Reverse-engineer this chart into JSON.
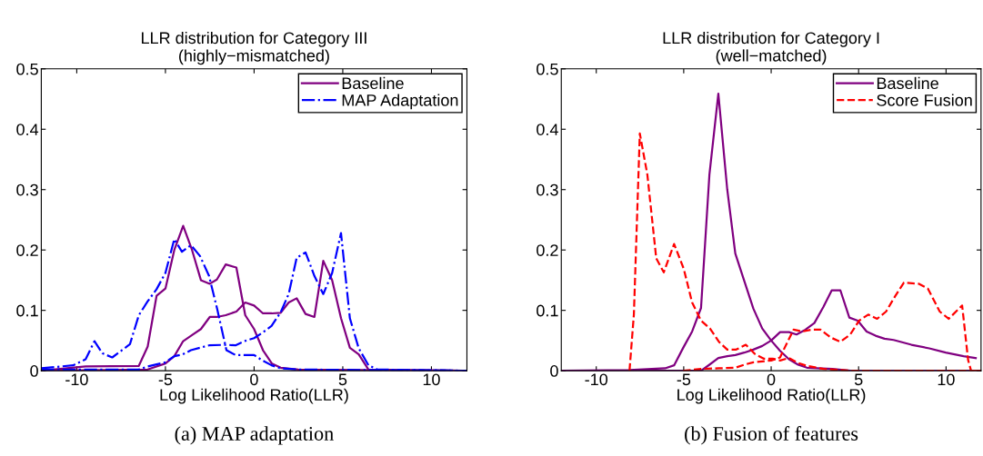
{
  "chart_data": [
    {
      "type": "line",
      "title": "LLR distribution for Category III\n(highly−mismatched)",
      "xlabel": "Log Likelihood Ratio(LLR)",
      "annotations": [
        "(a) MAP adaptation"
      ],
      "xlim": [
        -12,
        12
      ],
      "ylim": [
        0,
        0.5
      ],
      "xticks": [
        -10,
        -5,
        0,
        5,
        10
      ],
      "yticks": [
        0,
        0.1,
        0.2,
        0.3,
        0.4,
        0.5
      ],
      "grid": false,
      "legend": "top right",
      "marker": "none",
      "series": [
        {
          "name": "Baseline",
          "color": "#800080",
          "line_style": "solid",
          "x": [
            -12,
            -9.5,
            -6.5,
            -6.0,
            -5.5,
            -5.0,
            -4.5,
            -4.0,
            -3.5,
            -3.0,
            -2.5,
            -2.1,
            -1.6,
            -1.0,
            -0.5,
            0,
            0.5,
            1.0,
            1.5,
            2.5,
            12
          ],
          "values": [
            0,
            0.007,
            0.008,
            0.04,
            0.124,
            0.136,
            0.2,
            0.24,
            0.2,
            0.15,
            0.144,
            0.151,
            0.176,
            0.171,
            0.092,
            0.069,
            0.034,
            0.012,
            0.005,
            0.002,
            0
          ]
        },
        {
          "color": "#800080",
          "line_style": "solid",
          "x": [
            -12,
            -6,
            -5,
            -4.5,
            -4.0,
            -3.5,
            -3.0,
            -2.5,
            -2.1,
            -1.6,
            -1.0,
            -0.5,
            0,
            0.5,
            1.0,
            1.5,
            1.95,
            2.4,
            2.9,
            3.4,
            3.9,
            4.4,
            4.9,
            5.4,
            5.9,
            6.45,
            12
          ],
          "values": [
            0,
            0.002,
            0.012,
            0.024,
            0.049,
            0.059,
            0.069,
            0.089,
            0.089,
            0.092,
            0.098,
            0.113,
            0.108,
            0.095,
            0.095,
            0.096,
            0.113,
            0.12,
            0.094,
            0.089,
            0.182,
            0.15,
            0.087,
            0.038,
            0.027,
            0.002,
            0
          ]
        },
        {
          "name": "MAP Adaptation",
          "color": "#0000ff",
          "line_style": "dashdot",
          "x": [
            -12,
            -10.2,
            -9.5,
            -9.0,
            -8.56,
            -8.0,
            -7.54,
            -7.0,
            -6.5,
            -6.0,
            -5.5,
            -5.0,
            -4.5,
            -4.07,
            -3.56,
            -3.05,
            -2.54,
            -2.08,
            -1.56,
            -1.05,
            -0.54,
            0,
            0.47,
            0.98,
            1.5,
            2.5,
            12
          ],
          "values": [
            0.004,
            0.009,
            0.019,
            0.049,
            0.029,
            0.022,
            0.032,
            0.044,
            0.092,
            0.115,
            0.135,
            0.162,
            0.218,
            0.197,
            0.208,
            0.19,
            0.157,
            0.102,
            0.034,
            0.026,
            0.026,
            0.026,
            0.017,
            0.009,
            0.004,
            0.002,
            0
          ]
        },
        {
          "color": "#0000ff",
          "line_style": "dashdot",
          "x": [
            -12,
            -6.5,
            -6.0,
            -5.0,
            -4.5,
            -4.03,
            -3.56,
            -2.54,
            -1.56,
            -1.05,
            -0.54,
            0,
            0.47,
            0.98,
            1.5,
            1.95,
            2.4,
            2.9,
            3.4,
            3.9,
            4.4,
            4.9,
            5.4,
            5.9,
            6.45,
            6.95,
            12
          ],
          "values": [
            0.002,
            0.002,
            0.007,
            0.014,
            0.024,
            0.027,
            0.034,
            0.042,
            0.043,
            0.042,
            0.049,
            0.054,
            0.063,
            0.074,
            0.097,
            0.127,
            0.187,
            0.196,
            0.157,
            0.127,
            0.162,
            0.228,
            0.087,
            0.037,
            0.009,
            0.002,
            0
          ]
        }
      ]
    },
    {
      "type": "line",
      "title": "LLR distribution for Category I\n(well−matched)",
      "xlabel": "Log Likelihood Ratio(LLR)",
      "annotations": [
        "(b) Fusion of features"
      ],
      "xlim": [
        -12,
        12
      ],
      "ylim": [
        0,
        0.5
      ],
      "xticks": [
        -10,
        -5,
        0,
        5,
        10
      ],
      "yticks": [
        0,
        0.1,
        0.2,
        0.3,
        0.4,
        0.5
      ],
      "grid": false,
      "legend": "top right",
      "marker": "none",
      "series": [
        {
          "name": "Baseline",
          "color": "#800080",
          "line_style": "solid",
          "x": [
            -12,
            -8.1,
            -6.06,
            -5.55,
            -5.03,
            -4.52,
            -4.01,
            -3.53,
            -3.02,
            -2.51,
            -2.05,
            -1.54,
            -1.02,
            -0.51,
            0,
            0.51,
            1.02,
            1.54,
            2.05,
            3.5,
            4.52,
            12
          ],
          "values": [
            0,
            0.001,
            0.004,
            0.009,
            0.038,
            0.065,
            0.104,
            0.325,
            0.459,
            0.3,
            0.194,
            0.149,
            0.103,
            0.07,
            0.05,
            0.033,
            0.019,
            0.01,
            0.005,
            0.003,
            0,
            0
          ]
        },
        {
          "color": "#800080",
          "line_style": "solid",
          "x": [
            -12,
            -4.01,
            -3.53,
            -3.02,
            -2.51,
            -2.05,
            -1.54,
            -1.02,
            -0.51,
            0,
            0.51,
            1.02,
            1.45,
            1.96,
            2.47,
            2.99,
            3.46,
            3.96,
            4.47,
            4.95,
            5.46,
            5.97,
            6.48,
            7.0,
            8.02,
            9.04,
            9.98,
            11.0,
            11.7
          ],
          "values": [
            0,
            0,
            0.01,
            0.021,
            0.024,
            0.026,
            0.03,
            0.035,
            0.041,
            0.05,
            0.064,
            0.064,
            0.06,
            0.068,
            0.079,
            0.106,
            0.133,
            0.133,
            0.088,
            0.083,
            0.065,
            0.058,
            0.053,
            0.051,
            0.043,
            0.037,
            0.03,
            0.024,
            0.021
          ]
        },
        {
          "name": "Score Fusion",
          "color": "#ff0000",
          "line_style": "dashed",
          "x": [
            -8.1,
            -7.85,
            -7.51,
            -7.08,
            -6.57,
            -6.14,
            -5.55,
            -5.0,
            -4.52,
            -4.01,
            -3.5,
            -2.99,
            -2.51,
            -2.0,
            -1.45,
            -0.94,
            -0.43,
            0.09,
            0.51,
            1.02,
            1.54,
            2.05,
            2.99,
            4.52,
            12
          ],
          "values": [
            0,
            0.093,
            0.393,
            0.325,
            0.186,
            0.163,
            0.21,
            0.169,
            0.113,
            0.083,
            0.07,
            0.048,
            0.035,
            0.035,
            0.043,
            0.028,
            0.02,
            0.02,
            0.017,
            0.021,
            0.013,
            0.008,
            0.003,
            0,
            0
          ]
        },
        {
          "color": "#ff0000",
          "line_style": "dashed",
          "x": [
            -5.03,
            -4.01,
            -2.99,
            -2.05,
            -1.54,
            -1.02,
            0,
            0.51,
            0.77,
            1.28,
            1.79,
            2.3,
            2.82,
            3.41,
            3.96,
            4.52,
            5.03,
            5.55,
            6.06,
            6.57,
            7.08,
            7.59,
            8.45,
            8.96,
            9.64,
            10.15,
            10.92,
            11.26,
            11.43,
            12
          ],
          "values": [
            0,
            0.003,
            0.004,
            0.005,
            0.01,
            0.014,
            0.017,
            0.022,
            0.038,
            0.068,
            0.065,
            0.068,
            0.068,
            0.055,
            0.048,
            0.06,
            0.083,
            0.093,
            0.086,
            0.098,
            0.123,
            0.146,
            0.144,
            0.136,
            0.098,
            0.086,
            0.108,
            0.018,
            0,
            0
          ]
        }
      ]
    }
  ]
}
